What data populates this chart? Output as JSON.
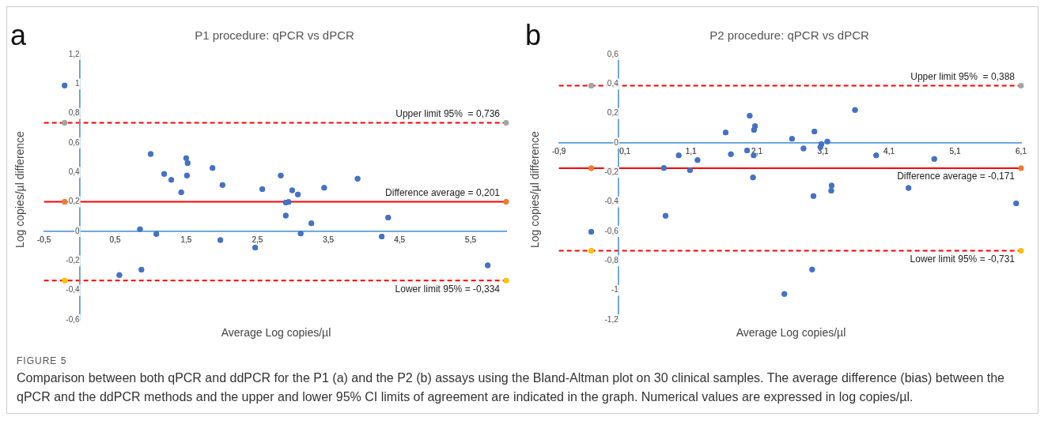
{
  "chart_data": [
    {
      "type": "scatter",
      "title": "P1 procedure: qPCR vs dPCR",
      "xlabel": "Average Log copies/µl",
      "ylabel": "Log copies/µl difference",
      "annotations": [
        "a",
        "FIGURE 5",
        "Comparison between both qPCR and ddPCR for the P1 (a) and the P2 (b) assays using the Bland-Altman plot on 30 clinical samples. The average difference (bias) between the qPCR and the ddPCR methods and the upper and lower 95% CI limits of agreement are indicated in the graph. Numerical values are expressed in log copies/µl."
      ],
      "marker": "circle",
      "legend": false,
      "grid": false,
      "xlim": [
        -0.5,
        6
      ],
      "xticks": [
        {
          "value": -0.5,
          "label": "-0,5"
        },
        {
          "value": 0.5,
          "label": "0,5"
        },
        {
          "value": 1.5,
          "label": "1,5"
        },
        {
          "value": 2.5,
          "label": "2,5"
        },
        {
          "value": 3.5,
          "label": "3,5"
        },
        {
          "value": 4.5,
          "label": "4,5"
        },
        {
          "value": 5.5,
          "label": "5,5"
        }
      ],
      "ylim": [
        -0.6,
        1.2
      ],
      "yticks": [
        {
          "value": -0.6,
          "label": "-0,6"
        },
        {
          "value": -0.4,
          "label": "-0,4"
        },
        {
          "value": -0.2,
          "label": "-0,2"
        },
        0,
        {
          "value": 0.2,
          "label": "0,2"
        },
        {
          "value": 0.4,
          "label": "0,4"
        },
        {
          "value": 0.6,
          "label": "0,6"
        },
        {
          "value": 0.8,
          "label": "0,8"
        },
        1,
        {
          "value": 1.2,
          "label": "1,2"
        }
      ],
      "ref_lines": [
        {
          "axis": "y",
          "value": 0.736,
          "label": "Upper limit 95%  = 0,736",
          "color": "#ff0000",
          "line_style": "dashed"
        },
        {
          "axis": "y",
          "value": 0.201,
          "label": "Difference average = 0,201",
          "color": "#ff0000",
          "line_style": "solid"
        },
        {
          "axis": "y",
          "value": -0.334,
          "label": "Lower limit 95% = -0,334",
          "color": "#ff0000",
          "line_style": "dashed"
        }
      ],
      "series": [
        {
          "type": "scatter",
          "color": "#4472c4",
          "x": [
            -0.21,
            1.0,
            1.19,
            1.29,
            1.43,
            1.5,
            1.52,
            1.51,
            1.87,
            2.01,
            2.57,
            2.83,
            2.99,
            3.07,
            2.9,
            2.94,
            2.9,
            3.44,
            3.91,
            3.26,
            4.34,
            3.11,
            4.25,
            0.85,
            1.08,
            1.98,
            2.47,
            0.56,
            0.87,
            5.74
          ],
          "values": [
            0.99,
            0.525,
            0.39,
            0.35,
            0.265,
            0.497,
            0.464,
            0.379,
            0.43,
            0.315,
            0.287,
            0.379,
            0.278,
            0.25,
            0.195,
            0.2,
            0.107,
            0.296,
            0.357,
            0.055,
            0.094,
            -0.015,
            -0.035,
            0.015,
            -0.018,
            -0.059,
            -0.11,
            -0.296,
            -0.26,
            -0.23
          ]
        },
        {
          "type": "scatter",
          "color": "#a5a5a5",
          "x": [
            -0.21,
            6
          ],
          "values": [
            0.736,
            0.736
          ]
        },
        {
          "type": "scatter",
          "color": "#ed7d31",
          "x": [
            -0.21,
            6
          ],
          "values": [
            0.201,
            0.201
          ]
        },
        {
          "type": "scatter",
          "color": "#ffc000",
          "x": [
            -0.21,
            6
          ],
          "values": [
            -0.334,
            -0.334
          ]
        }
      ]
    },
    {
      "type": "scatter",
      "title": "P2 procedure: qPCR vs dPCR",
      "xlabel": "Average Log copies/µl",
      "ylabel": "Log copies/µl difference",
      "annotations": [
        "b"
      ],
      "marker": "circle",
      "legend": false,
      "grid": false,
      "xlim": [
        -0.9,
        6.1
      ],
      "xticks": [
        {
          "value": -0.9,
          "label": "-0,9"
        },
        {
          "value": 0.1,
          "label": "0,1"
        },
        {
          "value": 1.1,
          "label": "1,1"
        },
        {
          "value": 2.1,
          "label": "2,1"
        },
        {
          "value": 3.1,
          "label": "3,1"
        },
        {
          "value": 4.1,
          "label": "4,1"
        },
        {
          "value": 5.1,
          "label": "5,1"
        },
        {
          "value": 6.1,
          "label": "6,1"
        }
      ],
      "ylim": [
        -1.2,
        0.6
      ],
      "yticks": [
        {
          "value": -1.2,
          "label": "-1,2"
        },
        -1,
        {
          "value": -0.8,
          "label": "-0,8"
        },
        {
          "value": -0.6,
          "label": "-0,6"
        },
        {
          "value": -0.4,
          "label": "-0,4"
        },
        {
          "value": -0.2,
          "label": "-0,2"
        },
        0,
        {
          "value": 0.2,
          "label": "0,2"
        },
        {
          "value": 0.4,
          "label": "0,4"
        },
        {
          "value": 0.6,
          "label": "0,6"
        }
      ],
      "ref_lines": [
        {
          "axis": "y",
          "value": 0.388,
          "label": "Upper limit 95%  = 0,388",
          "color": "#ff0000",
          "line_style": "dashed"
        },
        {
          "axis": "y",
          "value": -0.171,
          "label": "Difference average = -0,171",
          "color": "#ff0000",
          "line_style": "solid"
        },
        {
          "axis": "y",
          "value": -0.731,
          "label": "Lower limit 95% = -0,731",
          "color": "#ff0000",
          "line_style": "dashed"
        }
      ],
      "series": [
        {
          "type": "scatter",
          "color": "#4472c4",
          "x": [
            -0.41,
            0.69,
            0.715,
            0.915,
            1.085,
            1.2,
            1.625,
            1.705,
            1.95,
            1.99,
            2.07,
            2.055,
            2.05,
            2.04,
            2.63,
            2.805,
            2.97,
            2.955,
            2.935,
            2.515,
            3.06,
            3.075,
            3.165,
            3.23,
            3.225,
            3.585,
            3.905,
            4.395,
            4.785,
            6.025
          ],
          "values": [
            -0.603,
            -0.17,
            -0.494,
            -0.084,
            -0.185,
            -0.116,
            0.071,
            -0.076,
            -0.051,
            0.185,
            0.114,
            0.089,
            -0.084,
            -0.235,
            0.028,
            -0.038,
            0.078,
            -0.36,
            -0.858,
            -1.025,
            -0.028,
            -0.008,
            0.01,
            -0.289,
            -0.324,
            0.223,
            -0.084,
            -0.306,
            -0.109,
            -0.41
          ]
        },
        {
          "type": "scatter",
          "color": "#a5a5a5",
          "x": [
            -0.41,
            6.1
          ],
          "values": [
            0.388,
            0.388
          ]
        },
        {
          "type": "scatter",
          "color": "#ed7d31",
          "x": [
            -0.41,
            6.1
          ],
          "values": [
            -0.171,
            -0.171
          ]
        },
        {
          "type": "scatter",
          "color": "#ffc000",
          "x": [
            -0.41,
            6.1
          ],
          "values": [
            -0.731,
            -0.731
          ]
        }
      ]
    }
  ]
}
